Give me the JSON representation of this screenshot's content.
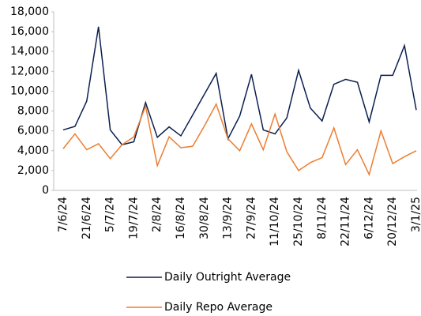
{
  "chart_data": {
    "type": "line",
    "categories": [
      "7/6/24",
      null,
      "21/6/24",
      null,
      "5/7/24",
      null,
      "19/7/24",
      null,
      "2/8/24",
      null,
      "16/8/24",
      null,
      "30/8/24",
      null,
      "13/9/24",
      null,
      "27/9/24",
      null,
      "11/10/24",
      null,
      "25/10/24",
      null,
      "8/11/24",
      null,
      "22/11/24",
      null,
      "6/12/24",
      null,
      "20/12/24",
      null,
      "3/1/25"
    ],
    "series": [
      {
        "name": "Daily Outright Average",
        "color": "#0b1f4f",
        "values": [
          6100,
          6450,
          9000,
          16500,
          6100,
          4600,
          4900,
          8850,
          5350,
          6400,
          5500,
          7600,
          9700,
          11800,
          5200,
          7500,
          11700,
          6100,
          5700,
          7300,
          12100,
          8300,
          7000,
          10700,
          11200,
          10900,
          6900,
          11600,
          11600,
          14600,
          8100
        ]
      },
      {
        "name": "Daily Repo Average",
        "color": "#ed7d31",
        "values": [
          4200,
          5700,
          4100,
          4700,
          3200,
          4600,
          5400,
          8500,
          2500,
          5400,
          4300,
          4450,
          6500,
          8700,
          5200,
          4000,
          6700,
          4100,
          7700,
          3900,
          2000,
          2800,
          3300,
          6300,
          2600,
          4100,
          1600,
          6000,
          2700,
          3400,
          4000
        ]
      }
    ],
    "ylim": [
      0,
      18000
    ],
    "yticks": [
      0,
      {
        "value": 2000,
        "label": "2,000"
      },
      {
        "value": 4000,
        "label": "4,000"
      },
      {
        "value": 6000,
        "label": "6,000"
      },
      {
        "value": 8000,
        "label": "8,000"
      },
      {
        "value": 10000,
        "label": "10,000"
      },
      {
        "value": 12000,
        "label": "12,000"
      },
      {
        "value": 14000,
        "label": "14,000"
      },
      {
        "value": 16000,
        "label": "16,000"
      },
      {
        "value": 18000,
        "label": "18,000"
      }
    ],
    "legend": "bottom"
  }
}
